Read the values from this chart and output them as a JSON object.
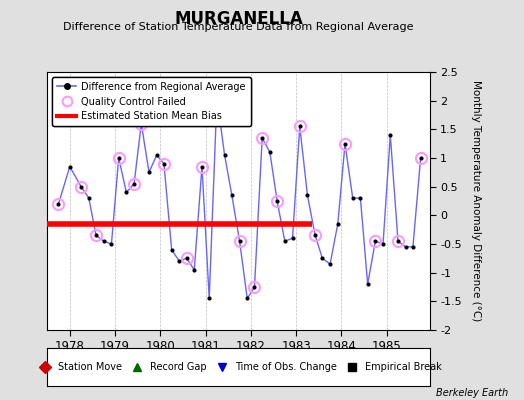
{
  "title": "MURGANELLA",
  "subtitle": "Difference of Station Temperature Data from Regional Average",
  "ylabel": "Monthly Temperature Anomaly Difference (°C)",
  "xlabel_years": [
    1978,
    1979,
    1980,
    1981,
    1982,
    1983,
    1984,
    1985
  ],
  "watermark": "Berkeley Earth",
  "ylim": [
    -2.0,
    2.5
  ],
  "xlim": [
    1977.5,
    1985.95
  ],
  "bias_line_y": -0.15,
  "bias_line_xstart": 1977.5,
  "bias_line_xend": 1983.35,
  "background_color": "#e0e0e0",
  "plot_bg_color": "#ffffff",
  "line_color": "#6666ff",
  "bias_color": "#ff0000",
  "qc_color": "#ff99ff",
  "dot_color": "#000000",
  "x": [
    1977.75,
    1978.0,
    1978.25,
    1978.42,
    1978.58,
    1978.75,
    1978.92,
    1979.08,
    1979.25,
    1979.42,
    1979.58,
    1979.75,
    1979.92,
    1980.08,
    1980.25,
    1980.42,
    1980.58,
    1980.75,
    1980.92,
    1981.08,
    1981.25,
    1981.42,
    1981.58,
    1981.75,
    1981.92,
    1982.08,
    1982.25,
    1982.42,
    1982.58,
    1982.75,
    1982.92,
    1983.08,
    1983.25,
    1983.42,
    1983.58,
    1983.75,
    1983.92,
    1984.08,
    1984.25,
    1984.42,
    1984.58,
    1984.75,
    1984.92,
    1985.08,
    1985.25,
    1985.42,
    1985.58,
    1985.75
  ],
  "y": [
    0.2,
    0.85,
    0.5,
    0.3,
    -0.35,
    -0.45,
    -0.5,
    1.0,
    0.4,
    0.55,
    1.6,
    0.75,
    1.05,
    0.9,
    -0.6,
    -0.8,
    -0.75,
    -0.95,
    0.85,
    -1.45,
    2.05,
    1.05,
    0.35,
    -0.45,
    -1.45,
    -1.25,
    1.35,
    1.1,
    0.25,
    -0.45,
    -0.4,
    1.55,
    0.35,
    -0.35,
    -0.75,
    -0.85,
    -0.15,
    1.25,
    0.3,
    0.3,
    -1.2,
    -0.45,
    -0.5,
    1.4,
    -0.45,
    -0.55,
    -0.55,
    1.0
  ],
  "qc_failed_indices": [
    0,
    2,
    4,
    7,
    9,
    10,
    13,
    16,
    18,
    20,
    23,
    25,
    26,
    28,
    31,
    33,
    37,
    41,
    44,
    47
  ],
  "legend_line_label": "Difference from Regional Average",
  "legend_qc_label": "Quality Control Failed",
  "legend_bias_label": "Estimated Station Mean Bias",
  "legend2_items": [
    {
      "label": "Station Move",
      "color": "#cc0000",
      "marker": "D"
    },
    {
      "label": "Record Gap",
      "color": "#006600",
      "marker": "^"
    },
    {
      "label": "Time of Obs. Change",
      "color": "#0000cc",
      "marker": "v"
    },
    {
      "label": "Empirical Break",
      "color": "#000000",
      "marker": "s"
    }
  ],
  "yticks": [
    -2.0,
    -1.5,
    -1.0,
    -0.5,
    0.0,
    0.5,
    1.0,
    1.5,
    2.0,
    2.5
  ],
  "ytick_labels": [
    "-2",
    "-1.5",
    "-1",
    "-0.5",
    "0",
    "0.5",
    "1",
    "1.5",
    "2",
    "2.5"
  ]
}
